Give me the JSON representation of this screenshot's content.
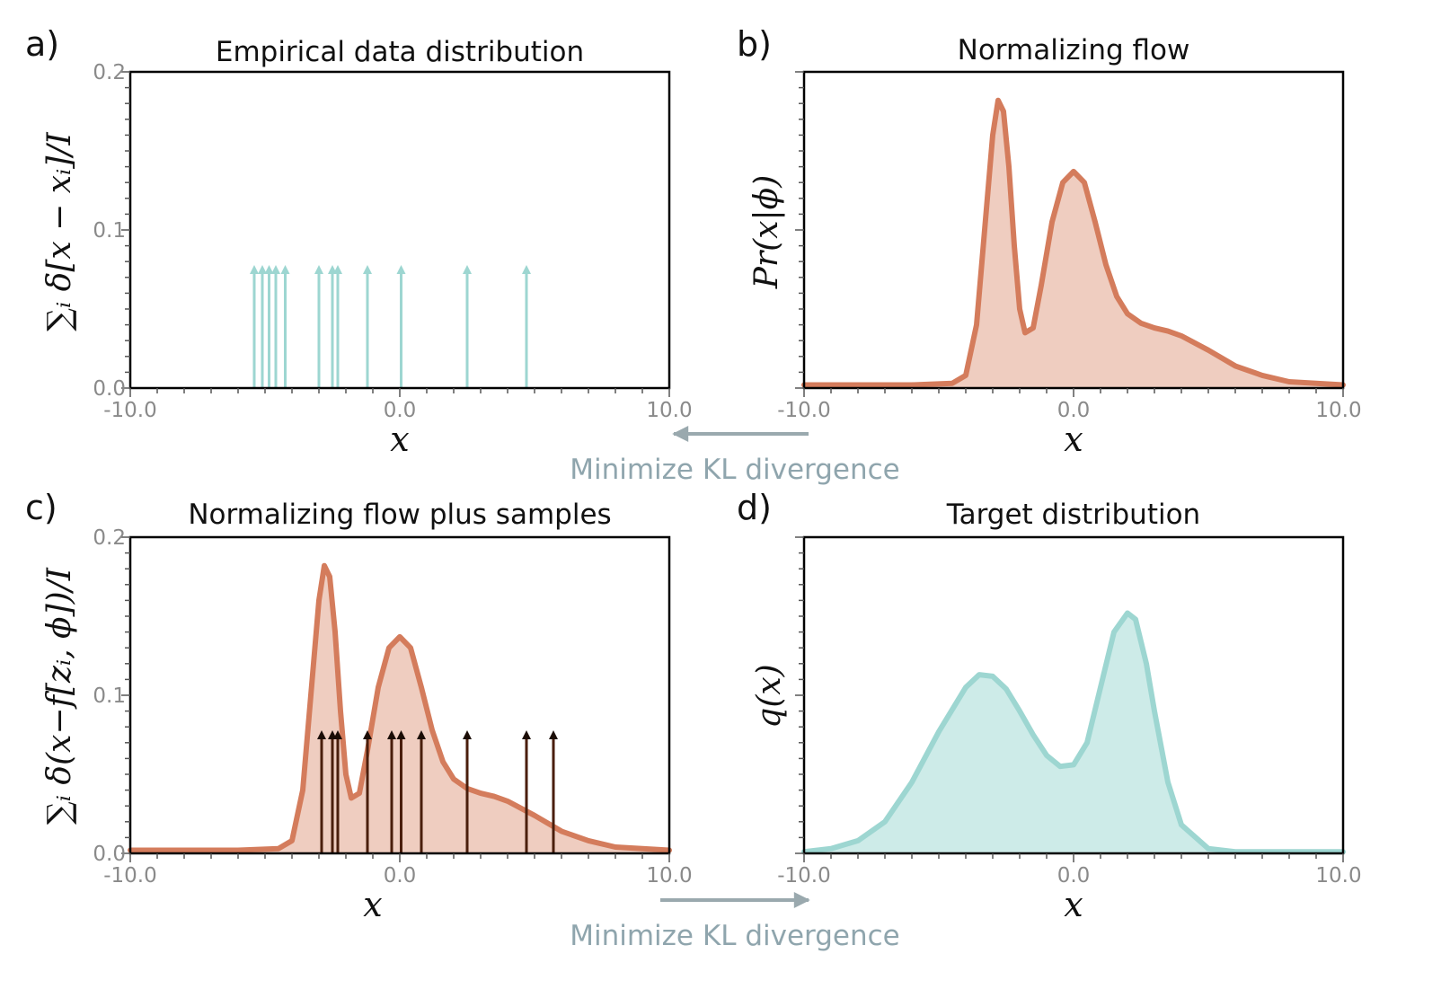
{
  "labels": {
    "minimize_top": "Minimize KL divergence",
    "minimize_bottom": "Minimize KL divergence"
  },
  "colors": {
    "teal": "#9dd6d1",
    "orange": "#d47c5c",
    "orange_fill": "#efcdc0",
    "teal_fill": "#cdebe8",
    "arrow_dark": "#4a1e0c",
    "kl_arrow": "#9aa9ae"
  },
  "chart_data": [
    {
      "type": "arrows",
      "panel": "a)",
      "title": "Empirical data distribution",
      "xlabel": "x",
      "ylabel": "∑ᵢ δ[x − xᵢ]/I",
      "xlim": [
        -10,
        10
      ],
      "ylim": [
        0,
        0.2
      ],
      "xticks": [
        "-10.0",
        "0.0",
        "10.0"
      ],
      "yticks": [
        "0.0",
        "0.1",
        "0.2"
      ],
      "arrow_positions": [
        -5.4,
        -5.1,
        -4.85,
        -4.6,
        -4.25,
        -3.0,
        -2.5,
        -2.3,
        -1.2,
        0.05,
        2.5,
        4.7
      ],
      "arrow_height": 0.075,
      "color": "teal"
    },
    {
      "type": "area",
      "panel": "b)",
      "title": "Normalizing flow",
      "xlabel": "x",
      "ylabel": "Pr(x|ϕ)",
      "xlim": [
        -10,
        10
      ],
      "ylim": [
        0,
        0.2
      ],
      "xticks": [
        "-10.0",
        "0.0",
        "10.0"
      ],
      "x": [
        -10,
        -8,
        -6,
        -4.5,
        -4,
        -3.6,
        -3.3,
        -3.0,
        -2.8,
        -2.6,
        -2.4,
        -2.2,
        -2.0,
        -1.8,
        -1.5,
        -1.2,
        -0.8,
        -0.4,
        0.0,
        0.4,
        0.8,
        1.2,
        1.6,
        2.0,
        2.5,
        3.0,
        3.5,
        4.0,
        5.0,
        6.0,
        7.0,
        8.0,
        9.0,
        10.0
      ],
      "y": [
        0.002,
        0.002,
        0.002,
        0.003,
        0.008,
        0.04,
        0.1,
        0.16,
        0.182,
        0.175,
        0.14,
        0.09,
        0.05,
        0.035,
        0.038,
        0.065,
        0.105,
        0.13,
        0.137,
        0.13,
        0.105,
        0.078,
        0.058,
        0.047,
        0.041,
        0.038,
        0.036,
        0.033,
        0.024,
        0.014,
        0.008,
        0.004,
        0.003,
        0.002
      ],
      "color": "orange"
    },
    {
      "type": "area+arrows",
      "panel": "c)",
      "title": "Normalizing flow plus samples",
      "xlabel": "x",
      "ylabel": "∑ᵢ δ(x−f[zᵢ, ϕ])/I",
      "xlim": [
        -10,
        10
      ],
      "ylim": [
        0,
        0.2
      ],
      "xticks": [
        "-10.0",
        "0.0",
        "10.0"
      ],
      "yticks": [
        "0.0",
        "0.1",
        "0.2"
      ],
      "arrow_positions": [
        -2.9,
        -2.5,
        -2.3,
        -1.2,
        -0.3,
        0.05,
        0.8,
        2.5,
        4.7,
        5.7
      ],
      "arrow_height": 0.075,
      "color": "orange"
    },
    {
      "type": "area",
      "panel": "d)",
      "title": "Target distribution",
      "xlabel": "x",
      "ylabel": "q(x)",
      "xlim": [
        -10,
        10
      ],
      "ylim": [
        0,
        0.2
      ],
      "xticks": [
        "-10.0",
        "0.0",
        "10.0"
      ],
      "x": [
        -10,
        -9,
        -8,
        -7,
        -6,
        -5,
        -4,
        -3.5,
        -3.0,
        -2.5,
        -2.0,
        -1.5,
        -1.0,
        -0.5,
        0.0,
        0.5,
        1.0,
        1.5,
        2.0,
        2.3,
        2.7,
        3.0,
        3.5,
        4.0,
        5.0,
        6.0,
        7.0,
        8.0,
        10.0
      ],
      "y": [
        0.001,
        0.003,
        0.008,
        0.02,
        0.045,
        0.077,
        0.105,
        0.113,
        0.112,
        0.104,
        0.09,
        0.075,
        0.062,
        0.055,
        0.056,
        0.07,
        0.105,
        0.14,
        0.152,
        0.148,
        0.12,
        0.09,
        0.045,
        0.018,
        0.003,
        0.001,
        0.001,
        0.001,
        0.001
      ],
      "color": "teal"
    }
  ]
}
